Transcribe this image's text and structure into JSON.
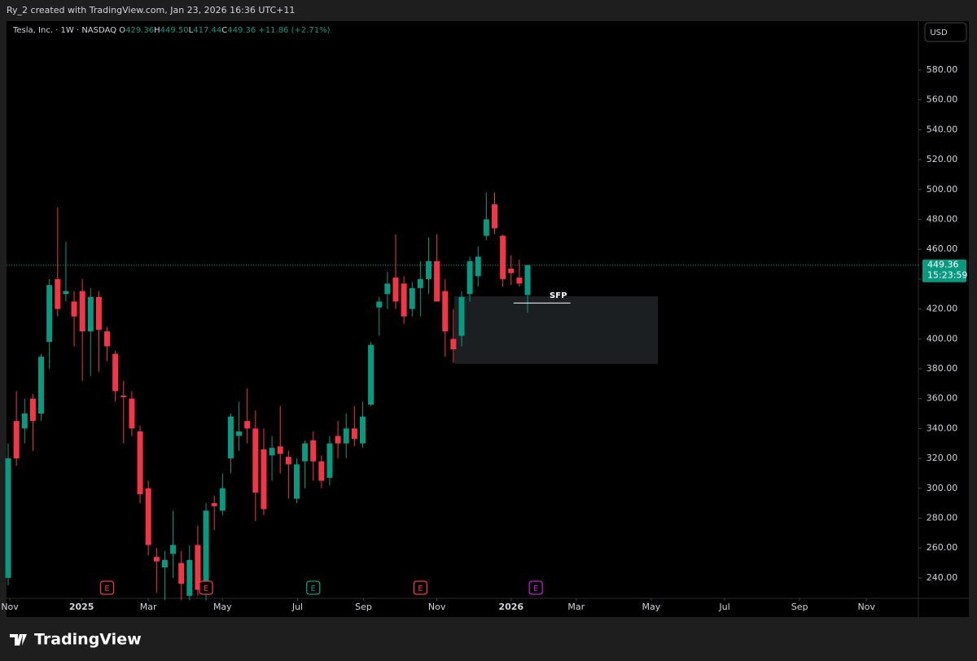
{
  "header": {
    "credit": "Ry_2 created with TradingView.com, Jan 23, 2026 16:36 UTC+11",
    "currency": "USD",
    "brand": "TradingView"
  },
  "chart_data": {
    "type": "candlestick",
    "legend": {
      "symbol": "Tesla, Inc. · 1W · NASDAQ",
      "items": [
        {
          "key": "O",
          "text": "429.36"
        },
        {
          "key": "H",
          "text": "449.50"
        },
        {
          "key": "L",
          "text": "417.44"
        },
        {
          "key": "C",
          "text": "449.36"
        }
      ],
      "change": "+11.86 (+2.71%)"
    },
    "up_color": "#089981",
    "down_color": "#f23645",
    "series": [
      {
        "name": "Tesla, Inc.",
        "open": [
          240,
          345,
          340,
          360,
          350,
          398,
          440,
          430,
          425,
          432,
          405,
          428,
          405,
          390,
          362,
          360,
          338,
          300,
          254,
          247,
          256,
          250,
          228,
          262,
          238,
          290,
          285,
          320,
          335,
          345,
          340,
          326,
          322,
          328,
          321,
          293,
          318,
          332,
          318,
          307,
          335,
          330,
          340,
          330,
          356,
          421,
          430,
          441,
          437,
          420,
          434,
          440,
          452,
          432,
          400,
          402,
          430,
          442,
          469,
          490,
          469,
          447,
          441,
          429.36
        ],
        "high": [
          330,
          365,
          360,
          363,
          390,
          440,
          488,
          465,
          432,
          440,
          434,
          432,
          408,
          392,
          372,
          365,
          342,
          305,
          260,
          258,
          285,
          258,
          262,
          275,
          290,
          295,
          310,
          350,
          358,
          367,
          352,
          340,
          335,
          355,
          325,
          320,
          332,
          338,
          322,
          335,
          345,
          350,
          355,
          358,
          398,
          428,
          445,
          470,
          442,
          438,
          452,
          468,
          470,
          440,
          420,
          432,
          455,
          462,
          498,
          498,
          470,
          456,
          453,
          449.5
        ],
        "low": [
          235,
          315,
          330,
          325,
          345,
          380,
          415,
          425,
          395,
          372,
          375,
          378,
          385,
          358,
          330,
          335,
          290,
          255,
          230,
          225,
          240,
          225,
          225,
          228,
          225,
          272,
          282,
          310,
          325,
          330,
          278,
          282,
          305,
          310,
          293,
          290,
          300,
          305,
          300,
          302,
          320,
          320,
          328,
          327,
          355,
          402,
          420,
          420,
          410,
          415,
          415,
          430,
          425,
          388,
          384,
          395,
          425,
          435,
          466,
          470,
          435,
          436,
          435,
          417.44
        ],
        "close": [
          320,
          320,
          350,
          345,
          388,
          436,
          420,
          432,
          415,
          405,
          428,
          406,
          395,
          365,
          361,
          340,
          296,
          262,
          251,
          252,
          262,
          236,
          252,
          232,
          285,
          288,
          300,
          348,
          338,
          340,
          297,
          286,
          327,
          323,
          316,
          316,
          330,
          318,
          305,
          330,
          330,
          340,
          333,
          348,
          396,
          425,
          437,
          425,
          415,
          434,
          440,
          452,
          425,
          405,
          393,
          428,
          452,
          455,
          480,
          474,
          440,
          444,
          437,
          449.36
        ]
      }
    ],
    "last_price": {
      "value": 449.36,
      "label": "449.36"
    },
    "countdown": "15:23:59",
    "zones": [
      {
        "x": [
          54.1,
          78.8
        ],
        "y": [
          428.5,
          383.3
        ],
        "color": "#1c1f22"
      }
    ],
    "annotations": [
      {
        "label": "SFP",
        "value": 424,
        "x": [
          61.3,
          68.2
        ]
      }
    ],
    "events": [
      {
        "label": "E",
        "x": 12,
        "color": "#f23645"
      },
      {
        "label": "E",
        "x": 24,
        "color": "#f23645"
      },
      {
        "label": "E",
        "x": 37,
        "color": "#089981"
      },
      {
        "label": "E",
        "x": 50,
        "color": "#f23645"
      },
      {
        "label": "E",
        "x": 64,
        "color": "#c41bd6"
      }
    ],
    "ylim": [
      226.3,
      611.6
    ],
    "yticks": [
      {
        "value": 240,
        "label": "240.00"
      },
      {
        "value": 260,
        "label": "260.00"
      },
      {
        "value": 280,
        "label": "280.00"
      },
      {
        "value": 300,
        "label": "300.00"
      },
      {
        "value": 320,
        "label": "320.00"
      },
      {
        "value": 340,
        "label": "340.00"
      },
      {
        "value": 360,
        "label": "360.00"
      },
      {
        "value": 380,
        "label": "380.00"
      },
      {
        "value": 400,
        "label": "400.00"
      },
      {
        "value": 420,
        "label": "420.00"
      },
      {
        "value": 440,
        "label": "440.00"
      },
      {
        "value": 460,
        "label": "460.00"
      },
      {
        "value": 480,
        "label": "480.00"
      },
      {
        "value": 500,
        "label": "500.00"
      },
      {
        "value": 520,
        "label": "520.00"
      },
      {
        "value": 540,
        "label": "540.00"
      },
      {
        "value": 560,
        "label": "560.00"
      },
      {
        "value": 580,
        "label": "580.00"
      }
    ],
    "xlim": [
      -0.2,
      110.4
    ],
    "xticks": [
      {
        "value": 0.2,
        "label": "Nov"
      },
      {
        "value": 8.9,
        "label": "2025"
      },
      {
        "value": 17,
        "label": "Mar"
      },
      {
        "value": 26,
        "label": "May"
      },
      {
        "value": 35.1,
        "label": "Jul"
      },
      {
        "value": 43.1,
        "label": "Sep"
      },
      {
        "value": 52,
        "label": "Nov"
      },
      {
        "value": 61,
        "label": "2026"
      },
      {
        "value": 68.9,
        "label": "Mar"
      },
      {
        "value": 78,
        "label": "May"
      },
      {
        "value": 86.9,
        "label": "Jul"
      },
      {
        "value": 96,
        "label": "Sep"
      },
      {
        "value": 104.1,
        "label": "Nov"
      }
    ]
  }
}
